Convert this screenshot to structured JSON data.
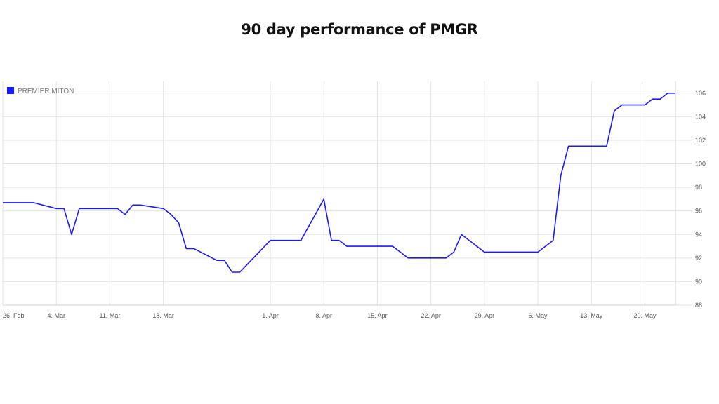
{
  "title": "90 day performance of PMGR",
  "chart_data": {
    "type": "line",
    "legend": {
      "label": "PREMIER MITON",
      "color": "#1a1aff",
      "position": "top-left"
    },
    "line_color": "#1a1aff",
    "grid_color": "#e3e3e3",
    "grid": true,
    "ylim": [
      88,
      107
    ],
    "y_ticks": [
      88,
      90,
      92,
      94,
      96,
      98,
      100,
      102,
      104,
      106
    ],
    "y_tick_labels": [
      "88",
      "90",
      "92",
      "94",
      "96",
      "98",
      "100",
      "102",
      "104",
      "106"
    ],
    "x_tick_labels": [
      "26. Feb",
      "4. Mar",
      "11. Mar",
      "18. Mar",
      "1. Apr",
      "8. Apr",
      "15. Apr",
      "22. Apr",
      "29. Apr",
      "6. May",
      "13. May",
      "20. May"
    ],
    "x_tick_dates": [
      "2024-02-26",
      "2024-03-04",
      "2024-03-11",
      "2024-03-18",
      "2024-04-01",
      "2024-04-08",
      "2024-04-15",
      "2024-04-22",
      "2024-04-29",
      "2024-05-06",
      "2024-05-13",
      "2024-05-20"
    ],
    "x_range": [
      "2024-02-26",
      "2024-05-24"
    ],
    "series": [
      {
        "name": "PREMIER MITON",
        "x": [
          "2024-02-26",
          "2024-02-27",
          "2024-02-28",
          "2024-02-29",
          "2024-03-01",
          "2024-03-04",
          "2024-03-05",
          "2024-03-06",
          "2024-03-07",
          "2024-03-08",
          "2024-03-11",
          "2024-03-12",
          "2024-03-13",
          "2024-03-14",
          "2024-03-15",
          "2024-03-18",
          "2024-03-19",
          "2024-03-20",
          "2024-03-21",
          "2024-03-22",
          "2024-03-25",
          "2024-03-26",
          "2024-03-27",
          "2024-03-28",
          "2024-04-01",
          "2024-04-02",
          "2024-04-03",
          "2024-04-04",
          "2024-04-05",
          "2024-04-08",
          "2024-04-09",
          "2024-04-10",
          "2024-04-11",
          "2024-04-12",
          "2024-04-15",
          "2024-04-16",
          "2024-04-17",
          "2024-04-18",
          "2024-04-19",
          "2024-04-22",
          "2024-04-23",
          "2024-04-24",
          "2024-04-25",
          "2024-04-26",
          "2024-04-29",
          "2024-04-30",
          "2024-05-01",
          "2024-05-02",
          "2024-05-03",
          "2024-05-06",
          "2024-05-07",
          "2024-05-08",
          "2024-05-09",
          "2024-05-10",
          "2024-05-13",
          "2024-05-14",
          "2024-05-15",
          "2024-05-16",
          "2024-05-17",
          "2024-05-20",
          "2024-05-21",
          "2024-05-22",
          "2024-05-23",
          "2024-05-24"
        ],
        "y": [
          96.7,
          96.7,
          96.7,
          96.7,
          96.7,
          96.2,
          96.2,
          94.0,
          96.2,
          96.2,
          96.2,
          96.2,
          95.7,
          96.5,
          96.5,
          96.2,
          95.7,
          95.0,
          92.8,
          92.8,
          91.8,
          91.8,
          90.8,
          90.8,
          93.5,
          93.5,
          93.5,
          93.5,
          93.5,
          97.0,
          93.5,
          93.5,
          93.0,
          93.0,
          93.0,
          93.0,
          93.0,
          92.5,
          92.0,
          92.0,
          92.0,
          92.0,
          92.5,
          94.0,
          92.5,
          92.5,
          92.5,
          92.5,
          92.5,
          92.5,
          93.0,
          93.5,
          99.0,
          101.5,
          101.5,
          101.5,
          101.5,
          104.5,
          105.0,
          105.0,
          105.5,
          105.5,
          106.0,
          106.0
        ]
      }
    ]
  }
}
